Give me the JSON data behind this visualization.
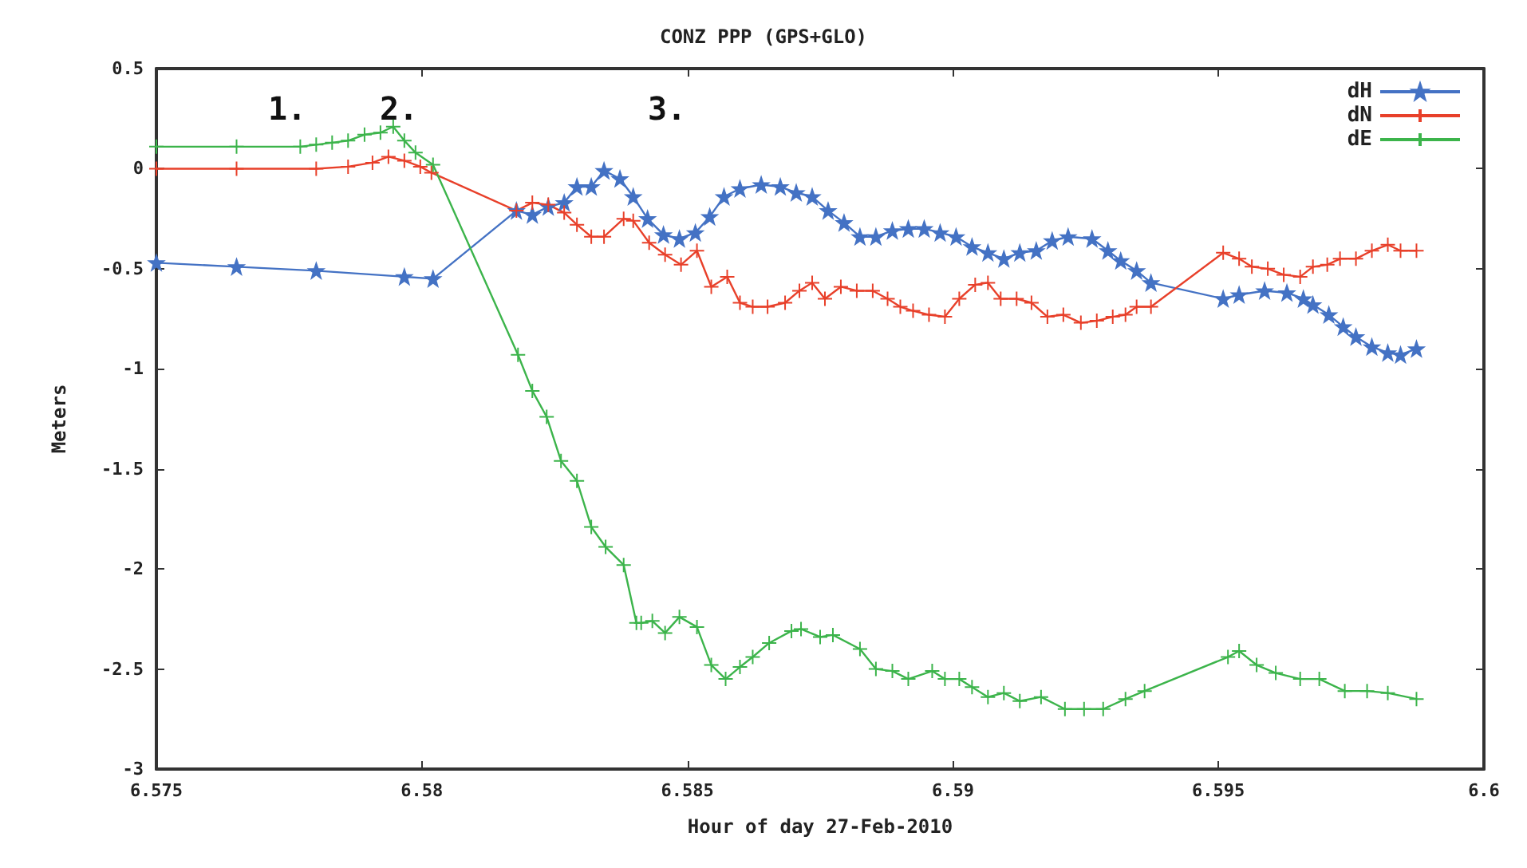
{
  "chart_data": {
    "type": "line",
    "title": "CONZ PPP (GPS+GLO)",
    "xlabel": "Hour of day 27-Feb-2010",
    "ylabel": "Meters",
    "xlim": [
      6.575,
      6.6
    ],
    "xticks": [
      6.575,
      6.58,
      6.585,
      6.59,
      6.595,
      6.6
    ],
    "ylim": [
      -3,
      0.5
    ],
    "yticks": [
      0.5,
      0,
      -0.5,
      -1,
      -1.5,
      -2,
      -2.5,
      -3
    ],
    "grid": false,
    "legend": "top right",
    "annotations": [
      "1.",
      "2.",
      "3."
    ],
    "series": [
      {
        "name": "dH",
        "color": "#4472c4",
        "marker": "star",
        "x": [
          6.575,
          6.57651,
          6.57801,
          6.57967,
          6.58021,
          6.58178,
          6.58208,
          6.58238,
          6.58268,
          6.58292,
          6.58319,
          6.58343,
          6.58373,
          6.58398,
          6.58425,
          6.58455,
          6.58485,
          6.58515,
          6.58542,
          6.58569,
          6.58599,
          6.58639,
          6.58675,
          6.58705,
          6.58735,
          6.58765,
          6.58795,
          6.58825,
          6.58855,
          6.58886,
          6.58916,
          6.58946,
          6.58976,
          6.59006,
          6.59036,
          6.59066,
          6.59096,
          6.59126,
          6.59157,
          6.59187,
          6.59217,
          6.59262,
          6.59292,
          6.59316,
          6.59346,
          6.59373,
          6.59509,
          6.59539,
          6.59587,
          6.59629,
          6.5966,
          6.59678,
          6.59708,
          6.59735,
          6.59759,
          6.59789,
          6.59819,
          6.59843,
          6.59873
        ],
        "values": [
          -0.47,
          -0.49,
          -0.51,
          -0.54,
          -0.55,
          -0.21,
          -0.23,
          -0.19,
          -0.17,
          -0.09,
          -0.09,
          -0.01,
          -0.05,
          -0.14,
          -0.25,
          -0.33,
          -0.35,
          -0.32,
          -0.24,
          -0.14,
          -0.1,
          -0.08,
          -0.09,
          -0.12,
          -0.14,
          -0.21,
          -0.27,
          -0.34,
          -0.34,
          -0.31,
          -0.3,
          -0.3,
          -0.32,
          -0.34,
          -0.39,
          -0.42,
          -0.45,
          -0.42,
          -0.41,
          -0.36,
          -0.34,
          -0.35,
          -0.41,
          -0.46,
          -0.51,
          -0.57,
          -0.65,
          -0.63,
          -0.61,
          -0.62,
          -0.65,
          -0.68,
          -0.73,
          -0.79,
          -0.84,
          -0.89,
          -0.92,
          -0.93,
          -0.9
        ]
      },
      {
        "name": "dN",
        "color": "#e8402a",
        "marker": "cross",
        "x": [
          6.575,
          6.57651,
          6.57801,
          6.57861,
          6.57907,
          6.57937,
          6.57967,
          6.57997,
          6.58018,
          6.58178,
          6.58208,
          6.58238,
          6.58268,
          6.58292,
          6.58319,
          6.58343,
          6.5838,
          6.58398,
          6.58428,
          6.58458,
          6.58488,
          6.58518,
          6.58545,
          6.58575,
          6.58599,
          6.58623,
          6.58651,
          6.58684,
          6.58711,
          6.58735,
          6.58759,
          6.58789,
          6.58819,
          6.58849,
          6.58877,
          6.58901,
          6.58925,
          6.58955,
          6.58985,
          6.59012,
          6.59042,
          6.59066,
          6.5909,
          6.5912,
          6.59148,
          6.59178,
          6.59208,
          6.59241,
          6.59271,
          6.59301,
          6.59325,
          6.59346,
          6.59373,
          6.59509,
          6.59539,
          6.59563,
          6.59593,
          6.59623,
          6.59654,
          6.59678,
          6.59705,
          6.59729,
          6.59759,
          6.59789,
          6.59819,
          6.59843,
          6.59873
        ],
        "values": [
          0,
          0,
          0,
          0.01,
          0.03,
          0.06,
          0.04,
          0.01,
          -0.02,
          -0.21,
          -0.17,
          -0.18,
          -0.22,
          -0.28,
          -0.34,
          -0.34,
          -0.25,
          -0.26,
          -0.37,
          -0.43,
          -0.48,
          -0.41,
          -0.59,
          -0.54,
          -0.67,
          -0.69,
          -0.69,
          -0.67,
          -0.61,
          -0.57,
          -0.65,
          -0.59,
          -0.61,
          -0.61,
          -0.65,
          -0.69,
          -0.71,
          -0.73,
          -0.74,
          -0.65,
          -0.58,
          -0.57,
          -0.65,
          -0.65,
          -0.67,
          -0.74,
          -0.73,
          -0.77,
          -0.76,
          -0.74,
          -0.73,
          -0.69,
          -0.69,
          -0.42,
          -0.45,
          -0.49,
          -0.5,
          -0.53,
          -0.54,
          -0.49,
          -0.48,
          -0.45,
          -0.45,
          -0.41,
          -0.38,
          -0.41,
          -0.41
        ]
      },
      {
        "name": "dE",
        "color": "#3cb44b",
        "marker": "cross",
        "x": [
          6.575,
          6.57651,
          6.57771,
          6.57801,
          6.57831,
          6.57861,
          6.57892,
          6.57922,
          6.57946,
          6.57967,
          6.57988,
          6.58021,
          6.58181,
          6.58208,
          6.58235,
          6.58262,
          6.58292,
          6.58319,
          6.58346,
          6.5838,
          6.58404,
          6.58413,
          6.58434,
          6.58458,
          6.58485,
          6.58518,
          6.58545,
          6.58572,
          6.58599,
          6.58623,
          6.58654,
          6.58696,
          6.58714,
          6.5875,
          6.58774,
          6.58825,
          6.58855,
          6.58886,
          6.58916,
          6.58961,
          6.58985,
          6.59012,
          6.59036,
          6.59066,
          6.59096,
          6.59126,
          6.59166,
          6.59211,
          6.59247,
          6.59283,
          6.59325,
          6.59361,
          6.59518,
          6.59539,
          6.59572,
          6.59608,
          6.59654,
          6.5969,
          6.59738,
          6.5978,
          6.59819,
          6.59873
        ],
        "values": [
          0.11,
          0.11,
          0.11,
          0.12,
          0.13,
          0.14,
          0.17,
          0.18,
          0.21,
          0.14,
          0.08,
          0.02,
          -0.93,
          -1.11,
          -1.24,
          -1.46,
          -1.56,
          -1.79,
          -1.89,
          -1.98,
          -2.27,
          -2.27,
          -2.26,
          -2.32,
          -2.24,
          -2.29,
          -2.48,
          -2.55,
          -2.49,
          -2.44,
          -2.37,
          -2.31,
          -2.3,
          -2.34,
          -2.33,
          -2.4,
          -2.5,
          -2.51,
          -2.55,
          -2.51,
          -2.55,
          -2.55,
          -2.59,
          -2.64,
          -2.62,
          -2.66,
          -2.64,
          -2.7,
          -2.7,
          -2.7,
          -2.65,
          -2.61,
          -2.44,
          -2.41,
          -2.48,
          -2.52,
          -2.55,
          -2.55,
          -2.61,
          -2.61,
          -2.62,
          -2.65
        ]
      }
    ]
  }
}
